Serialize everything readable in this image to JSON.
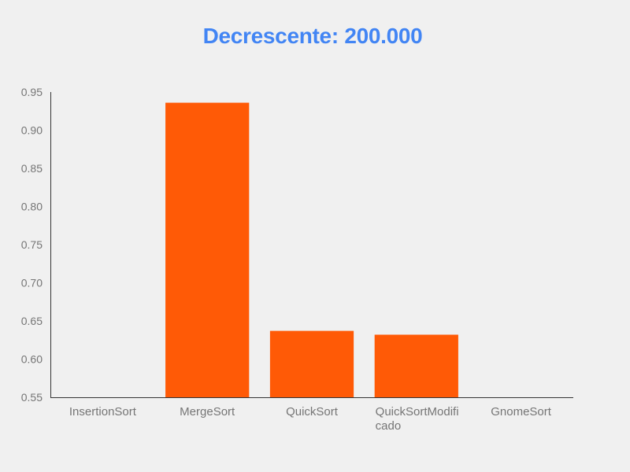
{
  "colors": {
    "title": "#4285f4",
    "bar": "#ff5a06",
    "axis": "#333333",
    "tick_label": "#757575",
    "background": "#f0f0f0"
  },
  "chart_data": {
    "type": "bar",
    "title": "Decrescente: 200.000",
    "xlabel": "",
    "ylabel": "",
    "grid": false,
    "legend": "none",
    "ylim": [
      0.55,
      0.95
    ],
    "yticks": [
      "0.55",
      "0.60",
      "0.65",
      "0.70",
      "0.75",
      "0.80",
      "0.85",
      "0.90",
      "0.95"
    ],
    "categories": [
      [
        "InsertionSort"
      ],
      [
        "MergeSort"
      ],
      [
        "QuickSort"
      ],
      [
        "QuickSortModifi",
        "cado"
      ],
      [
        "GnomeSort"
      ]
    ],
    "values": [
      null,
      0.936,
      0.637,
      0.632,
      null
    ]
  }
}
